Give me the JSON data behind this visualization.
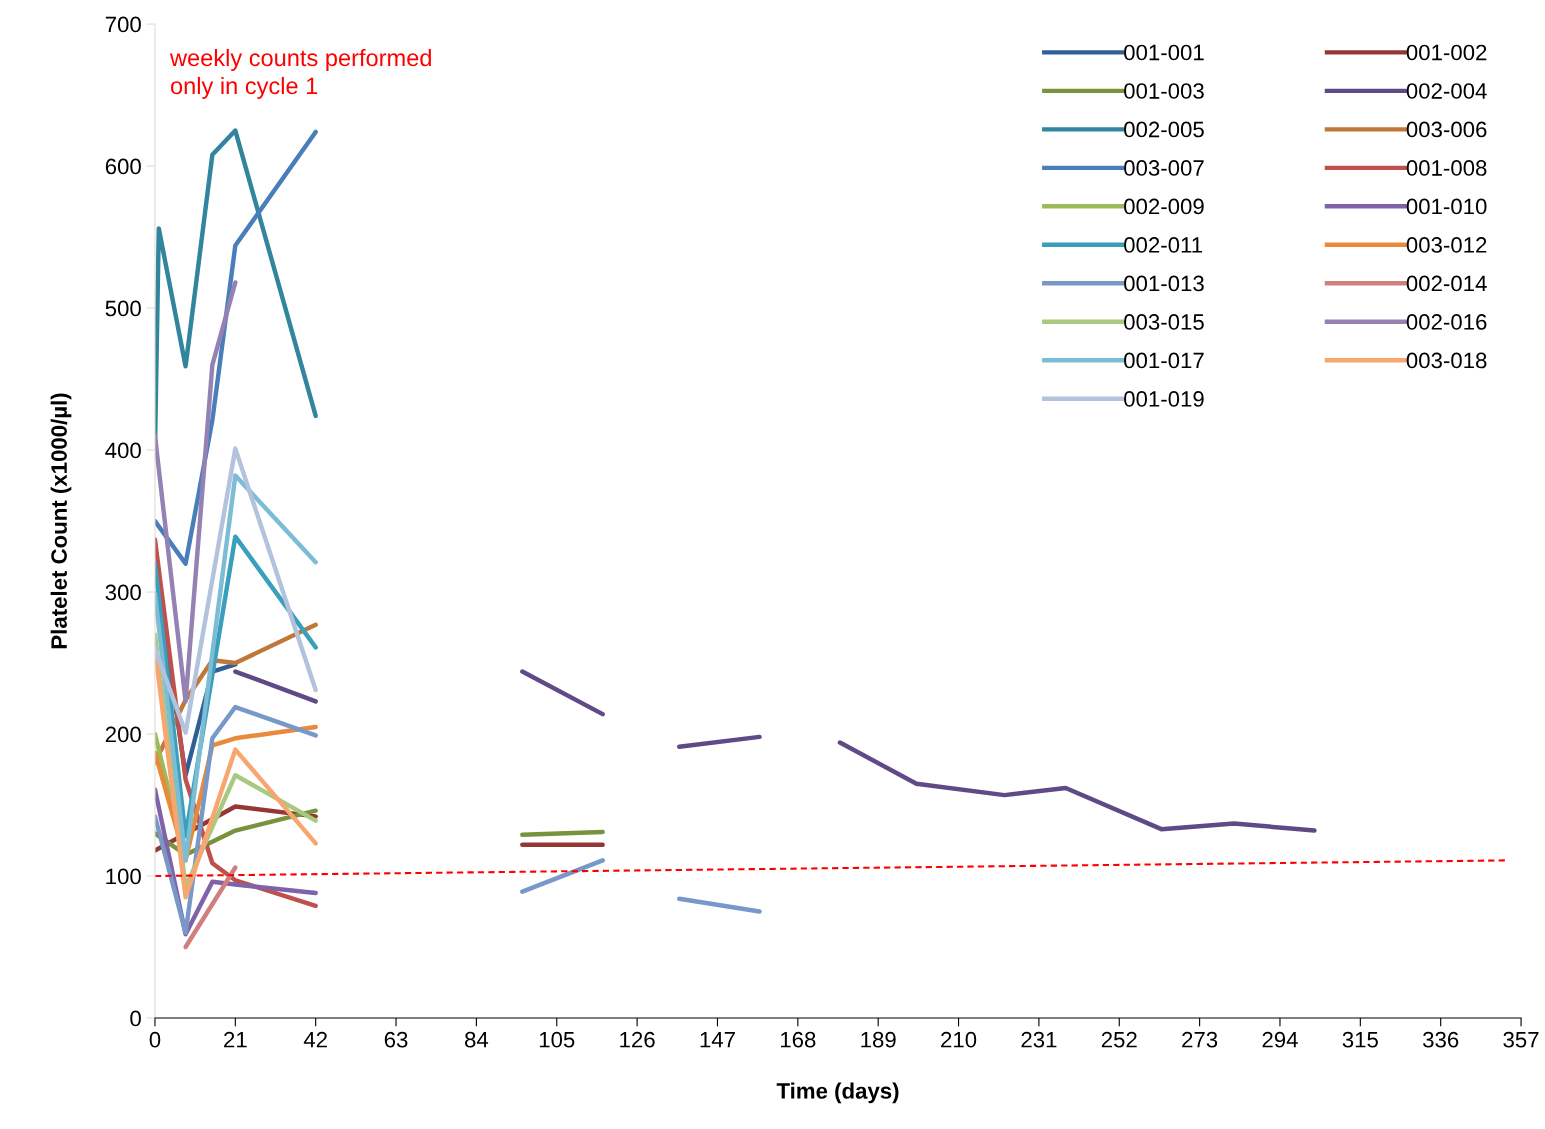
{
  "chart_data": {
    "type": "line",
    "xlabel": "Time (days)",
    "ylabel": "Platelet Count (x1000/µl)",
    "annotations": [
      "weekly counts performed\nonly in cycle 1"
    ],
    "xlim": [
      0,
      357
    ],
    "xticks": [
      0,
      21,
      42,
      63,
      84,
      105,
      126,
      147,
      168,
      189,
      210,
      231,
      252,
      273,
      294,
      315,
      336,
      357
    ],
    "ylim": [
      0,
      700
    ],
    "yticks": [
      0,
      100,
      200,
      300,
      400,
      500,
      600,
      700
    ],
    "grid": false,
    "legend": "top right",
    "marker": "none",
    "line_style": "solid",
    "series": [
      {
        "name": "001-001",
        "color": "#2f5f96",
        "x": [
          0,
          8,
          15,
          21
        ],
        "values": [
          318,
          171,
          244,
          249
        ]
      },
      {
        "name": "001-002",
        "color": "#953735",
        "x": [
          0,
          21,
          42,
          70,
          96,
          117
        ],
        "values": [
          118,
          149,
          142,
          null,
          122,
          122
        ]
      },
      {
        "name": "001-003",
        "color": "#77933c",
        "x": [
          0,
          8,
          21,
          42,
          70,
          96,
          117
        ],
        "values": [
          130,
          115,
          132,
          146,
          null,
          129,
          131
        ]
      },
      {
        "name": "002-004",
        "color": "#5f4a87",
        "x": [
          21,
          42,
          70,
          96,
          117,
          127,
          137,
          158,
          168,
          179,
          199,
          222,
          238,
          263,
          282,
          303
        ],
        "values": [
          244,
          223,
          null,
          244,
          214,
          null,
          191,
          198,
          null,
          194,
          165,
          157,
          162,
          133,
          137,
          132
        ]
      },
      {
        "name": "002-005",
        "color": "#31859c",
        "x": [
          0,
          1,
          8,
          15,
          21,
          42
        ],
        "values": [
          400,
          556,
          459,
          608,
          625,
          424
        ]
      },
      {
        "name": "003-006",
        "color": "#c0783a",
        "x": [
          0,
          8,
          15,
          21,
          42
        ],
        "values": [
          180,
          224,
          252,
          250,
          277
        ]
      },
      {
        "name": "003-007",
        "color": "#4a7ebb",
        "x": [
          0,
          8,
          15,
          21,
          42
        ],
        "values": [
          350,
          320,
          421,
          544,
          624
        ]
      },
      {
        "name": "001-008",
        "color": "#c0504d",
        "x": [
          0,
          8,
          15,
          21,
          42
        ],
        "values": [
          337,
          168,
          109,
          97,
          79
        ]
      },
      {
        "name": "002-009",
        "color": "#9bbb59",
        "x": [
          0,
          8
        ],
        "values": [
          200,
          112
        ]
      },
      {
        "name": "001-010",
        "color": "#7f62a7",
        "x": [
          0,
          8,
          15,
          21,
          42
        ],
        "values": [
          161,
          59,
          96,
          94,
          88
        ]
      },
      {
        "name": "002-011",
        "color": "#3a9fbb",
        "x": [
          0,
          8,
          21,
          42
        ],
        "values": [
          320,
          128,
          339,
          261
        ]
      },
      {
        "name": "003-012",
        "color": "#e8893c",
        "x": [
          0,
          8,
          15,
          21,
          42
        ],
        "values": [
          187,
          111,
          192,
          197,
          205
        ]
      },
      {
        "name": "001-013",
        "color": "#7898c8",
        "x": [
          0,
          8,
          15,
          21,
          42,
          70,
          96,
          117,
          127,
          137,
          158
        ],
        "values": [
          142,
          60,
          197,
          219,
          199,
          null,
          89,
          111,
          null,
          84,
          75
        ]
      },
      {
        "name": "002-014",
        "color": "#d07f7e",
        "x": [
          8,
          21
        ],
        "values": [
          50,
          106
        ]
      },
      {
        "name": "003-015",
        "color": "#a8c97f",
        "x": [
          0,
          8,
          21,
          42
        ],
        "values": [
          270,
          92,
          171,
          139
        ]
      },
      {
        "name": "002-016",
        "color": "#9582b4",
        "x": [
          0,
          8,
          15,
          21
        ],
        "values": [
          410,
          223,
          460,
          518
        ]
      },
      {
        "name": "001-017",
        "color": "#7cbcd4",
        "x": [
          0,
          8,
          21,
          42
        ],
        "values": [
          299,
          111,
          382,
          321
        ]
      },
      {
        "name": "003-018",
        "color": "#f7a66f",
        "x": [
          0,
          8,
          21,
          42
        ],
        "values": [
          260,
          85,
          189,
          123
        ]
      },
      {
        "name": "001-019",
        "color": "#b3c3de",
        "x": [
          0,
          8,
          21,
          42
        ],
        "values": [
          260,
          201,
          401,
          231
        ]
      },
      {
        "color": "#ff0000",
        "x": [
          0,
          353
        ],
        "values": [
          100,
          111
        ],
        "line_style": "dashed"
      }
    ]
  }
}
